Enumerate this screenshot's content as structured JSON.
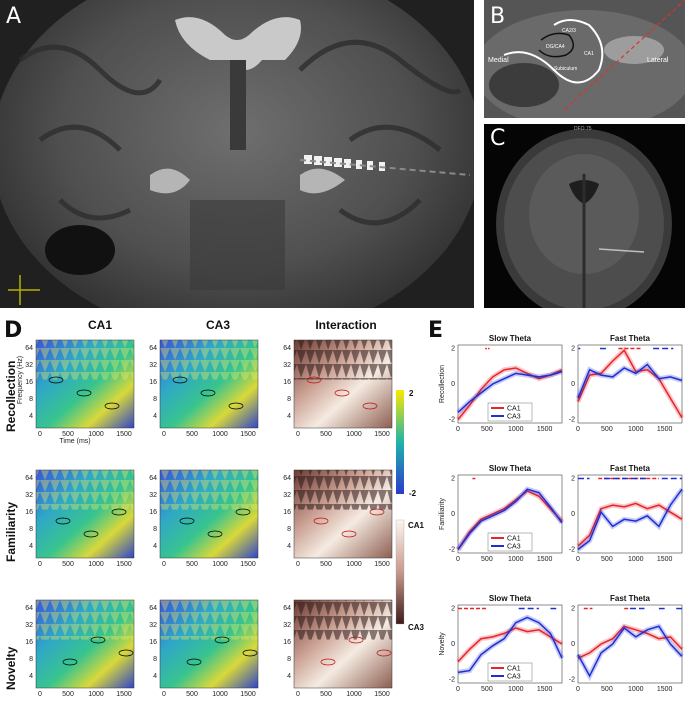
{
  "panels": {
    "A": {
      "label": "A"
    },
    "B": {
      "label": "B",
      "regions": [
        "CA2/3",
        "DG/CA4",
        "CA1",
        "Subiculum"
      ],
      "medial": "Medial",
      "lateral": "Lateral"
    },
    "C": {
      "label": "C",
      "header_text": "DFO 75"
    },
    "D": {
      "label": "D",
      "columns": [
        "CA1",
        "CA3",
        "Interaction"
      ],
      "rows": [
        "Recollection",
        "Familiarity",
        "Novelty"
      ],
      "freq_ticks": [
        "64",
        "32",
        "16",
        "8",
        "4"
      ],
      "time_ticks": [
        "0",
        "500",
        "1000",
        "1500"
      ],
      "xlabel": "Time (ms)",
      "ylabel": "Frequency (Hz)",
      "colorbar_top": {
        "max": "2",
        "min": "-2",
        "colors": [
          "#ffe800",
          "#21b4a8",
          "#2b3acd"
        ]
      },
      "colorbar_bottom": {
        "top": "CA1",
        "bottom": "CA3",
        "colors": [
          "#fbf6ef",
          "#c69a8c",
          "#3e1b1b"
        ]
      }
    },
    "E": {
      "label": "E",
      "columns": [
        "Slow Theta",
        "Fast Theta"
      ],
      "ylabels": [
        "Recollection",
        "Familiarity",
        "Novelty"
      ],
      "legend": [
        "CA1",
        "CA3"
      ],
      "colors": {
        "ca1": "#e8232a",
        "ca3": "#1f2fd6"
      },
      "yticks": [
        "2",
        "0",
        "-2"
      ],
      "xticks": [
        "0",
        "500",
        "1000",
        "1500"
      ]
    }
  },
  "chart_data": [
    {
      "type": "line",
      "title": "Slow Theta",
      "ylabel": "Recollection",
      "x": [
        0,
        200,
        400,
        600,
        800,
        1000,
        1200,
        1400,
        1600,
        1800
      ],
      "series": [
        {
          "name": "CA1",
          "values": [
            -2.0,
            -1.2,
            -0.3,
            0.4,
            0.8,
            0.9,
            0.6,
            0.3,
            0.5,
            0.8
          ]
        },
        {
          "name": "CA3",
          "values": [
            -1.6,
            -1.0,
            -0.5,
            0.0,
            0.3,
            0.6,
            0.5,
            0.4,
            0.5,
            0.7
          ]
        }
      ],
      "ylim": [
        -2.2,
        2.2
      ]
    },
    {
      "type": "line",
      "title": "Fast Theta",
      "ylabel": "",
      "x": [
        0,
        200,
        400,
        600,
        800,
        1000,
        1200,
        1400,
        1600,
        1800
      ],
      "series": [
        {
          "name": "CA1",
          "values": [
            -1.0,
            0.5,
            0.6,
            1.3,
            1.9,
            0.7,
            0.8,
            0.3,
            -0.8,
            -1.9
          ]
        },
        {
          "name": "CA3",
          "values": [
            -0.8,
            0.8,
            0.5,
            0.4,
            0.9,
            0.6,
            1.1,
            0.3,
            0.4,
            0.2
          ]
        }
      ],
      "ylim": [
        -2.2,
        2.2
      ]
    },
    {
      "type": "line",
      "title": "Slow Theta",
      "ylabel": "Familiarity",
      "x": [
        0,
        200,
        400,
        600,
        800,
        1000,
        1200,
        1400,
        1600,
        1800
      ],
      "series": [
        {
          "name": "CA1",
          "values": [
            -2.0,
            -1.0,
            -0.3,
            0.0,
            0.3,
            0.8,
            1.3,
            1.0,
            0.3,
            -0.4
          ]
        },
        {
          "name": "CA3",
          "values": [
            -2.0,
            -1.1,
            -0.4,
            -0.1,
            0.2,
            0.7,
            1.4,
            1.2,
            0.4,
            -0.5
          ]
        }
      ],
      "ylim": [
        -2.2,
        2.2
      ]
    },
    {
      "type": "line",
      "title": "Fast Theta",
      "ylabel": "",
      "x": [
        0,
        200,
        400,
        600,
        800,
        1000,
        1200,
        1400,
        1600,
        1800
      ],
      "series": [
        {
          "name": "CA1",
          "values": [
            -1.8,
            -1.2,
            0.3,
            0.5,
            0.4,
            0.6,
            0.3,
            0.5,
            0.1,
            -0.3
          ]
        },
        {
          "name": "CA3",
          "values": [
            -2.0,
            -1.5,
            0.1,
            -0.7,
            -0.3,
            -0.4,
            -0.1,
            -0.7,
            0.5,
            1.4
          ]
        }
      ],
      "ylim": [
        -2.2,
        2.2
      ]
    },
    {
      "type": "line",
      "title": "Slow Theta",
      "ylabel": "Novelty",
      "x": [
        0,
        200,
        400,
        600,
        800,
        1000,
        1200,
        1400,
        1600,
        1800
      ],
      "series": [
        {
          "name": "CA1",
          "values": [
            -1.0,
            -0.3,
            0.3,
            0.4,
            0.6,
            0.9,
            0.7,
            0.8,
            0.4,
            0.0
          ]
        },
        {
          "name": "CA3",
          "values": [
            -1.6,
            -1.5,
            -0.6,
            -0.1,
            0.3,
            1.2,
            1.5,
            1.2,
            0.6,
            -0.8
          ]
        }
      ],
      "ylim": [
        -2.2,
        2.2
      ]
    },
    {
      "type": "line",
      "title": "Fast Theta",
      "ylabel": "",
      "x": [
        0,
        200,
        400,
        600,
        800,
        1000,
        1200,
        1400,
        1600,
        1800
      ],
      "series": [
        {
          "name": "CA1",
          "values": [
            -0.8,
            -0.5,
            0.0,
            0.3,
            1.0,
            0.8,
            0.6,
            0.3,
            0.4,
            -0.3
          ]
        },
        {
          "name": "CA3",
          "values": [
            -0.6,
            -1.8,
            -0.5,
            0.0,
            0.9,
            0.4,
            0.8,
            1.0,
            0.0,
            -0.7
          ]
        }
      ],
      "ylim": [
        -2.2,
        2.2
      ]
    }
  ]
}
